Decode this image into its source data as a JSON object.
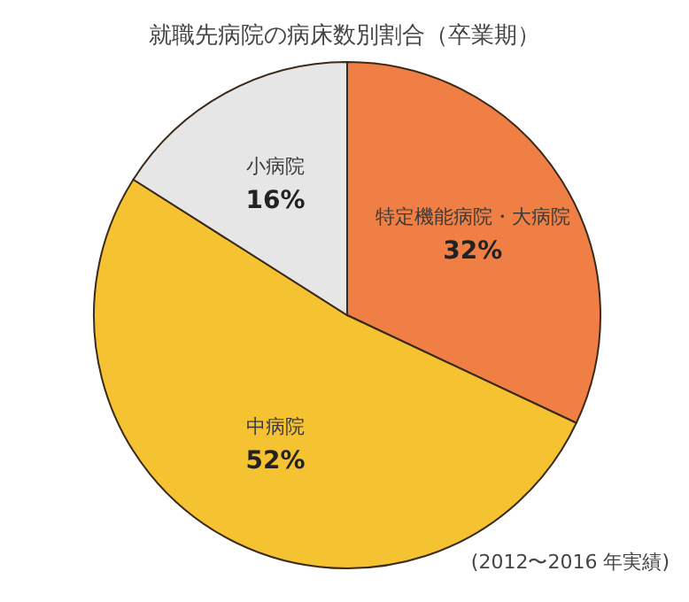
{
  "chart_data": {
    "type": "pie",
    "title": "就職先病院の病床数別割合（卒業期）",
    "categories": [
      "特定機能病院・大病院",
      "中病院",
      "小病院"
    ],
    "values": [
      32,
      52,
      16
    ],
    "value_labels": [
      "32%",
      "52%",
      "16%"
    ],
    "colors": [
      "#ef7f45",
      "#f5c232",
      "#e6e6e6"
    ],
    "annotations": [
      "(2012〜2016 年実績)"
    ]
  }
}
